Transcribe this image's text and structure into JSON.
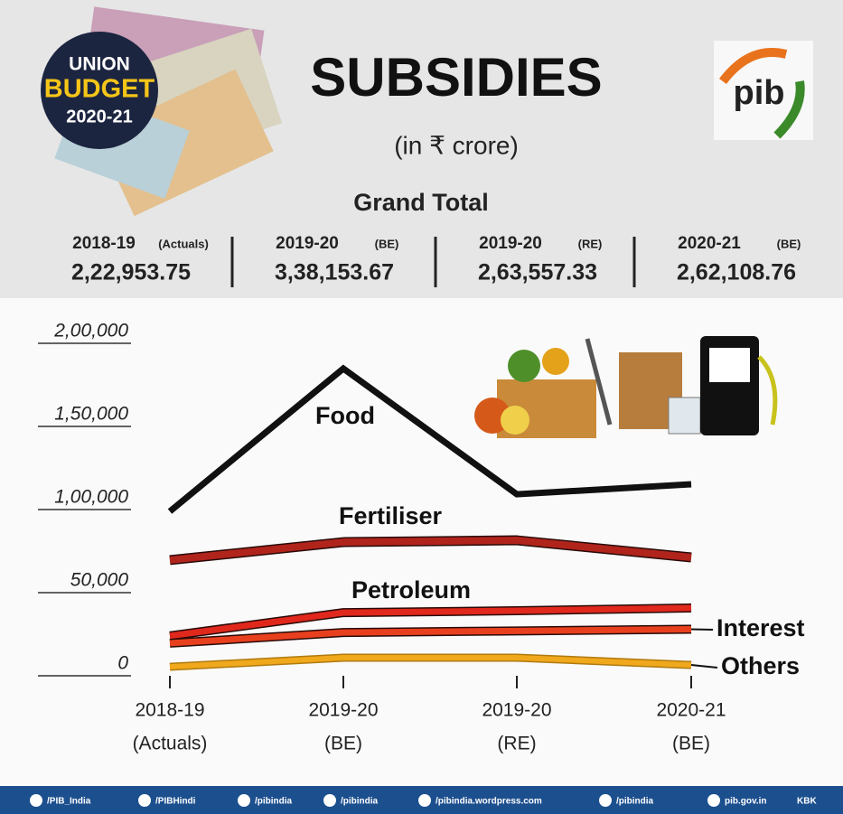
{
  "header": {
    "badge": [
      "UNION",
      "BUDGET",
      "2020-21"
    ],
    "title": "SUBSIDIES",
    "subtitle": "(in ₹ crore)",
    "logo": "pib"
  },
  "grand_total": {
    "title": "Grand Total",
    "items": [
      {
        "period": "2018-19",
        "note": "(Actuals)",
        "value": "2,22,953.75"
      },
      {
        "period": "2019-20",
        "note": "(BE)",
        "value": "3,38,153.67"
      },
      {
        "period": "2019-20",
        "note": "(RE)",
        "value": "2,63,557.33"
      },
      {
        "period": "2020-21",
        "note": "(BE)",
        "value": "2,62,108.76"
      }
    ]
  },
  "chart_data": {
    "type": "line",
    "categories": [
      "2018-19",
      "2019-20",
      "2019-20",
      "2020-21"
    ],
    "category_notes": [
      "(Actuals)",
      "(BE)",
      "(RE)",
      "(BE)"
    ],
    "series": [
      {
        "name": "Food",
        "color": "#111111",
        "values": [
          98900,
          184800,
          109200,
          115200
        ]
      },
      {
        "name": "Fertiliser",
        "color": "#b0241b",
        "values": [
          69600,
          80400,
          81500,
          71200
        ]
      },
      {
        "name": "Petroleum",
        "color": "#e0281c",
        "values": [
          24000,
          38000,
          39100,
          40800
        ]
      },
      {
        "name": "Interest",
        "color": "#e8401e",
        "values": [
          19600,
          26000,
          27000,
          28000
        ]
      },
      {
        "name": "Others",
        "color": "#f0a81c",
        "values": [
          5400,
          10900,
          10900,
          6500
        ]
      }
    ],
    "ylim": [
      0,
      200000
    ],
    "yticks": [
      0,
      {
        "value": 50000,
        "label": "50,000"
      },
      {
        "value": 100000,
        "label": "1,00,000"
      },
      {
        "value": 150000,
        "label": "1,50,000"
      },
      {
        "value": 200000,
        "label": "2,00,000"
      }
    ]
  },
  "footer": {
    "links": [
      "/PIB_India",
      "/PIBHindi",
      "/pibindia",
      "/pibindia",
      "/pibindia.wordpress.com",
      "/pibindia",
      "pib.gov.in"
    ],
    "credit": "KBK"
  }
}
